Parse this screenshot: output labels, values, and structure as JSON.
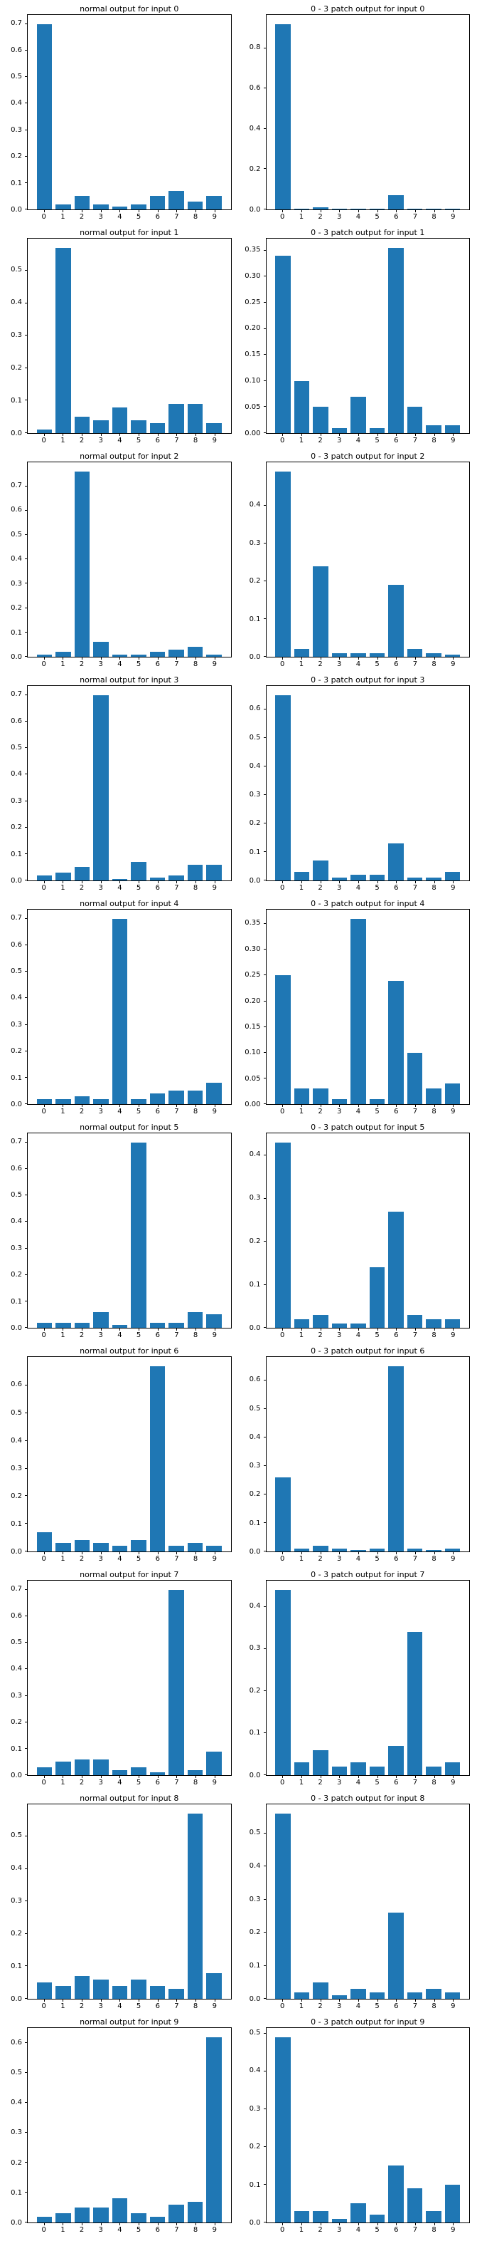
{
  "bar_color": "#1f77b4",
  "chart_data": [
    {
      "type": "bar",
      "title": "normal output for input 0",
      "categories": [
        "0",
        "1",
        "2",
        "3",
        "4",
        "5",
        "6",
        "7",
        "8",
        "9"
      ],
      "values": [
        0.7,
        0.02,
        0.05,
        0.02,
        0.01,
        0.02,
        0.05,
        0.07,
        0.03,
        0.05
      ],
      "yticks": [
        "0.0",
        "0.1",
        "0.2",
        "0.3",
        "0.4",
        "0.5",
        "0.6",
        "0.7"
      ],
      "xlabel": "",
      "ylabel": "",
      "grid": false,
      "legend": "none"
    },
    {
      "type": "bar",
      "title": "0 - 3 patch output for input 0",
      "categories": [
        "0",
        "1",
        "2",
        "3",
        "4",
        "5",
        "6",
        "7",
        "8",
        "9"
      ],
      "values": [
        0.92,
        0.005,
        0.01,
        0.005,
        0.004,
        0.004,
        0.07,
        0.004,
        0.003,
        0.003
      ],
      "yticks": [
        "0.0",
        "0.2",
        "0.4",
        "0.6",
        "0.8"
      ],
      "xlabel": "",
      "ylabel": "",
      "grid": false,
      "legend": "none"
    },
    {
      "type": "bar",
      "title": "normal output for input 1",
      "categories": [
        "0",
        "1",
        "2",
        "3",
        "4",
        "5",
        "6",
        "7",
        "8",
        "9"
      ],
      "values": [
        0.01,
        0.57,
        0.05,
        0.04,
        0.08,
        0.04,
        0.03,
        0.09,
        0.09,
        0.03
      ],
      "yticks": [
        "0.0",
        "0.1",
        "0.2",
        "0.3",
        "0.4",
        "0.5"
      ],
      "xlabel": "",
      "ylabel": "",
      "grid": false,
      "legend": "none"
    },
    {
      "type": "bar",
      "title": "0 - 3 patch output for input 1",
      "categories": [
        "0",
        "1",
        "2",
        "3",
        "4",
        "5",
        "6",
        "7",
        "8",
        "9"
      ],
      "values": [
        0.34,
        0.1,
        0.05,
        0.01,
        0.07,
        0.01,
        0.355,
        0.05,
        0.015,
        0.015
      ],
      "yticks": [
        "0.00",
        "0.05",
        "0.10",
        "0.15",
        "0.20",
        "0.25",
        "0.30",
        "0.35"
      ],
      "xlabel": "",
      "ylabel": "",
      "grid": false,
      "legend": "none"
    },
    {
      "type": "bar",
      "title": "normal output for input 2",
      "categories": [
        "0",
        "1",
        "2",
        "3",
        "4",
        "5",
        "6",
        "7",
        "8",
        "9"
      ],
      "values": [
        0.01,
        0.02,
        0.76,
        0.06,
        0.01,
        0.01,
        0.02,
        0.03,
        0.04,
        0.01
      ],
      "yticks": [
        "0.0",
        "0.1",
        "0.2",
        "0.3",
        "0.4",
        "0.5",
        "0.6",
        "0.7"
      ],
      "xlabel": "",
      "ylabel": "",
      "grid": false,
      "legend": "none"
    },
    {
      "type": "bar",
      "title": "0 - 3 patch output for input 2",
      "categories": [
        "0",
        "1",
        "2",
        "3",
        "4",
        "5",
        "6",
        "7",
        "8",
        "9"
      ],
      "values": [
        0.49,
        0.02,
        0.24,
        0.01,
        0.01,
        0.01,
        0.19,
        0.02,
        0.01,
        0.005
      ],
      "yticks": [
        "0.0",
        "0.1",
        "0.2",
        "0.3",
        "0.4"
      ],
      "xlabel": "",
      "ylabel": "",
      "grid": false,
      "legend": "none"
    },
    {
      "type": "bar",
      "title": "normal output for input 3",
      "categories": [
        "0",
        "1",
        "2",
        "3",
        "4",
        "5",
        "6",
        "7",
        "8",
        "9"
      ],
      "values": [
        0.02,
        0.03,
        0.05,
        0.7,
        0.005,
        0.07,
        0.01,
        0.02,
        0.06,
        0.06
      ],
      "yticks": [
        "0.0",
        "0.1",
        "0.2",
        "0.3",
        "0.4",
        "0.5",
        "0.6",
        "0.7"
      ],
      "xlabel": "",
      "ylabel": "",
      "grid": false,
      "legend": "none"
    },
    {
      "type": "bar",
      "title": "0 - 3 patch output for input 3",
      "categories": [
        "0",
        "1",
        "2",
        "3",
        "4",
        "5",
        "6",
        "7",
        "8",
        "9"
      ],
      "values": [
        0.65,
        0.03,
        0.07,
        0.01,
        0.02,
        0.02,
        0.13,
        0.01,
        0.01,
        0.03
      ],
      "yticks": [
        "0.0",
        "0.1",
        "0.2",
        "0.3",
        "0.4",
        "0.5",
        "0.6"
      ],
      "xlabel": "",
      "ylabel": "",
      "grid": false,
      "legend": "none"
    },
    {
      "type": "bar",
      "title": "normal output for input 4",
      "categories": [
        "0",
        "1",
        "2",
        "3",
        "4",
        "5",
        "6",
        "7",
        "8",
        "9"
      ],
      "values": [
        0.02,
        0.02,
        0.03,
        0.02,
        0.7,
        0.02,
        0.04,
        0.05,
        0.05,
        0.08
      ],
      "yticks": [
        "0.0",
        "0.1",
        "0.2",
        "0.3",
        "0.4",
        "0.5",
        "0.6",
        "0.7"
      ],
      "xlabel": "",
      "ylabel": "",
      "grid": false,
      "legend": "none"
    },
    {
      "type": "bar",
      "title": "0 - 3 patch output for input 4",
      "categories": [
        "0",
        "1",
        "2",
        "3",
        "4",
        "5",
        "6",
        "7",
        "8",
        "9"
      ],
      "values": [
        0.25,
        0.03,
        0.03,
        0.01,
        0.36,
        0.01,
        0.24,
        0.1,
        0.03,
        0.04
      ],
      "yticks": [
        "0.00",
        "0.05",
        "0.10",
        "0.15",
        "0.20",
        "0.25",
        "0.30",
        "0.35"
      ],
      "xlabel": "",
      "ylabel": "",
      "grid": false,
      "legend": "none"
    },
    {
      "type": "bar",
      "title": "normal output for input 5",
      "categories": [
        "0",
        "1",
        "2",
        "3",
        "4",
        "5",
        "6",
        "7",
        "8",
        "9"
      ],
      "values": [
        0.02,
        0.02,
        0.02,
        0.06,
        0.01,
        0.7,
        0.02,
        0.02,
        0.06,
        0.05
      ],
      "yticks": [
        "0.0",
        "0.1",
        "0.2",
        "0.3",
        "0.4",
        "0.5",
        "0.6",
        "0.7"
      ],
      "xlabel": "",
      "ylabel": "",
      "grid": false,
      "legend": "none"
    },
    {
      "type": "bar",
      "title": "0 - 3 patch output for input 5",
      "categories": [
        "0",
        "1",
        "2",
        "3",
        "4",
        "5",
        "6",
        "7",
        "8",
        "9"
      ],
      "values": [
        0.43,
        0.02,
        0.03,
        0.01,
        0.01,
        0.14,
        0.27,
        0.03,
        0.02,
        0.02
      ],
      "yticks": [
        "0.0",
        "0.1",
        "0.2",
        "0.3",
        "0.4"
      ],
      "xlabel": "",
      "ylabel": "",
      "grid": false,
      "legend": "none"
    },
    {
      "type": "bar",
      "title": "normal output for input 6",
      "categories": [
        "0",
        "1",
        "2",
        "3",
        "4",
        "5",
        "6",
        "7",
        "8",
        "9"
      ],
      "values": [
        0.07,
        0.03,
        0.04,
        0.03,
        0.02,
        0.04,
        0.67,
        0.02,
        0.03,
        0.02
      ],
      "yticks": [
        "0.0",
        "0.1",
        "0.2",
        "0.3",
        "0.4",
        "0.5",
        "0.6"
      ],
      "xlabel": "",
      "ylabel": "",
      "grid": false,
      "legend": "none"
    },
    {
      "type": "bar",
      "title": "0 - 3 patch output for input 6",
      "categories": [
        "0",
        "1",
        "2",
        "3",
        "4",
        "5",
        "6",
        "7",
        "8",
        "9"
      ],
      "values": [
        0.26,
        0.01,
        0.02,
        0.01,
        0.005,
        0.01,
        0.65,
        0.01,
        0.005,
        0.01
      ],
      "yticks": [
        "0.0",
        "0.1",
        "0.2",
        "0.3",
        "0.4",
        "0.5",
        "0.6"
      ],
      "xlabel": "",
      "ylabel": "",
      "grid": false,
      "legend": "none"
    },
    {
      "type": "bar",
      "title": "normal output for input 7",
      "categories": [
        "0",
        "1",
        "2",
        "3",
        "4",
        "5",
        "6",
        "7",
        "8",
        "9"
      ],
      "values": [
        0.03,
        0.05,
        0.06,
        0.06,
        0.02,
        0.03,
        0.01,
        0.7,
        0.02,
        0.09
      ],
      "yticks": [
        "0.0",
        "0.1",
        "0.2",
        "0.3",
        "0.4",
        "0.5",
        "0.6",
        "0.7"
      ],
      "xlabel": "",
      "ylabel": "",
      "grid": false,
      "legend": "none"
    },
    {
      "type": "bar",
      "title": "0 - 3 patch output for input 7",
      "categories": [
        "0",
        "1",
        "2",
        "3",
        "4",
        "5",
        "6",
        "7",
        "8",
        "9"
      ],
      "values": [
        0.44,
        0.03,
        0.06,
        0.02,
        0.03,
        0.02,
        0.07,
        0.34,
        0.02,
        0.03
      ],
      "yticks": [
        "0.0",
        "0.1",
        "0.2",
        "0.3",
        "0.4"
      ],
      "xlabel": "",
      "ylabel": "",
      "grid": false,
      "legend": "none"
    },
    {
      "type": "bar",
      "title": "normal output for input 8",
      "categories": [
        "0",
        "1",
        "2",
        "3",
        "4",
        "5",
        "6",
        "7",
        "8",
        "9"
      ],
      "values": [
        0.05,
        0.04,
        0.07,
        0.06,
        0.04,
        0.06,
        0.04,
        0.03,
        0.57,
        0.08
      ],
      "yticks": [
        "0.0",
        "0.1",
        "0.2",
        "0.3",
        "0.4",
        "0.5"
      ],
      "xlabel": "",
      "ylabel": "",
      "grid": false,
      "legend": "none"
    },
    {
      "type": "bar",
      "title": "0 - 3 patch output for input 8",
      "categories": [
        "0",
        "1",
        "2",
        "3",
        "4",
        "5",
        "6",
        "7",
        "8",
        "9"
      ],
      "values": [
        0.56,
        0.02,
        0.05,
        0.01,
        0.03,
        0.02,
        0.26,
        0.02,
        0.03,
        0.02
      ],
      "yticks": [
        "0.0",
        "0.1",
        "0.2",
        "0.3",
        "0.4",
        "0.5"
      ],
      "xlabel": "",
      "ylabel": "",
      "grid": false,
      "legend": "none"
    },
    {
      "type": "bar",
      "title": "normal output for input 9",
      "categories": [
        "0",
        "1",
        "2",
        "3",
        "4",
        "5",
        "6",
        "7",
        "8",
        "9"
      ],
      "values": [
        0.02,
        0.03,
        0.05,
        0.05,
        0.08,
        0.03,
        0.02,
        0.06,
        0.07,
        0.62
      ],
      "yticks": [
        "0.0",
        "0.1",
        "0.2",
        "0.3",
        "0.4",
        "0.5",
        "0.6"
      ],
      "xlabel": "",
      "ylabel": "",
      "grid": false,
      "legend": "none"
    },
    {
      "type": "bar",
      "title": "0 - 3 patch output for input 9",
      "categories": [
        "0",
        "1",
        "2",
        "3",
        "4",
        "5",
        "6",
        "7",
        "8",
        "9"
      ],
      "values": [
        0.49,
        0.03,
        0.03,
        0.01,
        0.05,
        0.02,
        0.15,
        0.09,
        0.03,
        0.1
      ],
      "yticks": [
        "0.0",
        "0.1",
        "0.2",
        "0.3",
        "0.4",
        "0.5"
      ],
      "xlabel": "",
      "ylabel": "",
      "grid": false,
      "legend": "none"
    }
  ]
}
